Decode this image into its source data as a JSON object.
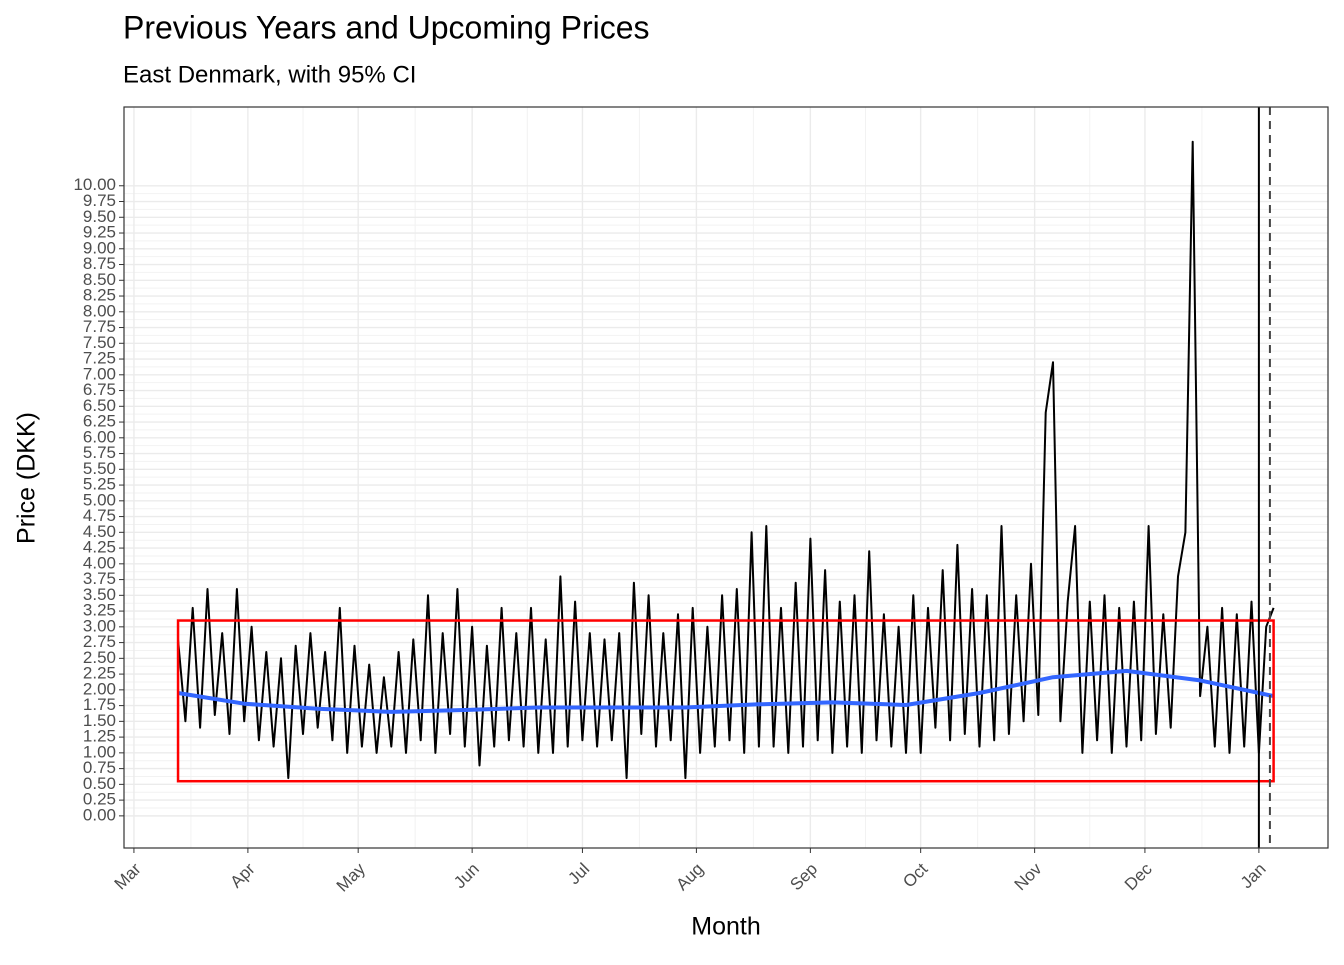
{
  "chart_data": {
    "type": "line",
    "title": "Previous Years and Upcoming Prices",
    "subtitle": "East Denmark, with 95% CI",
    "x_label": "Month",
    "y_label": "Price (DKK)",
    "xlim": [
      -2.7,
      324.8
    ],
    "ylim": [
      -0.51,
      11.25
    ],
    "xticks": [
      {
        "value": 0,
        "label": "Mar"
      },
      {
        "value": 31,
        "label": "Apr"
      },
      {
        "value": 61,
        "label": "May"
      },
      {
        "value": 92,
        "label": "Jun"
      },
      {
        "value": 122,
        "label": "Jul"
      },
      {
        "value": 153,
        "label": "Aug"
      },
      {
        "value": 184,
        "label": "Sep"
      },
      {
        "value": 214,
        "label": "Oct"
      },
      {
        "value": 245,
        "label": "Nov"
      },
      {
        "value": 275,
        "label": "Dec"
      },
      {
        "value": 306,
        "label": "Jan"
      }
    ],
    "yticks": [
      {
        "value": 0,
        "label": "0.00"
      },
      {
        "value": 0.25,
        "label": "0.25"
      },
      {
        "value": 0.5,
        "label": "0.50"
      },
      {
        "value": 0.75,
        "label": "0.75"
      },
      {
        "value": 1,
        "label": "1.00"
      },
      {
        "value": 1.25,
        "label": "1.25"
      },
      {
        "value": 1.5,
        "label": "1.50"
      },
      {
        "value": 1.75,
        "label": "1.75"
      },
      {
        "value": 2,
        "label": "2.00"
      },
      {
        "value": 2.25,
        "label": "2.25"
      },
      {
        "value": 2.5,
        "label": "2.50"
      },
      {
        "value": 2.75,
        "label": "2.75"
      },
      {
        "value": 3,
        "label": "3.00"
      },
      {
        "value": 3.25,
        "label": "3.25"
      },
      {
        "value": 3.5,
        "label": "3.50"
      },
      {
        "value": 3.75,
        "label": "3.75"
      },
      {
        "value": 4,
        "label": "4.00"
      },
      {
        "value": 4.25,
        "label": "4.25"
      },
      {
        "value": 4.5,
        "label": "4.50"
      },
      {
        "value": 4.75,
        "label": "4.75"
      },
      {
        "value": 5,
        "label": "5.00"
      },
      {
        "value": 5.25,
        "label": "5.25"
      },
      {
        "value": 5.5,
        "label": "5.50"
      },
      {
        "value": 5.75,
        "label": "5.75"
      },
      {
        "value": 6,
        "label": "6.00"
      },
      {
        "value": 6.25,
        "label": "6.25"
      },
      {
        "value": 6.5,
        "label": "6.50"
      },
      {
        "value": 6.75,
        "label": "6.75"
      },
      {
        "value": 7,
        "label": "7.00"
      },
      {
        "value": 7.25,
        "label": "7.25"
      },
      {
        "value": 7.5,
        "label": "7.50"
      },
      {
        "value": 7.75,
        "label": "7.75"
      },
      {
        "value": 8,
        "label": "8.00"
      },
      {
        "value": 8.25,
        "label": "8.25"
      },
      {
        "value": 8.5,
        "label": "8.50"
      },
      {
        "value": 8.75,
        "label": "8.75"
      },
      {
        "value": 9,
        "label": "9.00"
      },
      {
        "value": 9.25,
        "label": "9.25"
      },
      {
        "value": 9.5,
        "label": "9.50"
      },
      {
        "value": 9.75,
        "label": "9.75"
      },
      {
        "value": 10,
        "label": "10.00"
      }
    ],
    "grid": true,
    "series": [
      {
        "color": "#000000",
        "x": [
          12,
          14,
          16,
          18,
          20,
          22,
          24,
          26,
          28,
          30,
          32,
          34,
          36,
          38,
          40,
          42,
          44,
          46,
          48,
          50,
          52,
          54,
          56,
          58,
          60,
          62,
          64,
          66,
          68,
          70,
          72,
          74,
          76,
          78,
          80,
          82,
          84,
          86,
          88,
          90,
          92,
          94,
          96,
          98,
          100,
          102,
          104,
          106,
          108,
          110,
          112,
          114,
          116,
          118,
          120,
          122,
          124,
          126,
          128,
          130,
          132,
          134,
          136,
          138,
          140,
          142,
          144,
          146,
          148,
          150,
          152,
          154,
          156,
          158,
          160,
          162,
          164,
          166,
          168,
          170,
          172,
          174,
          176,
          178,
          180,
          182,
          184,
          186,
          188,
          190,
          192,
          194,
          196,
          198,
          200,
          202,
          204,
          206,
          208,
          210,
          212,
          214,
          216,
          218,
          220,
          222,
          224,
          226,
          228,
          230,
          232,
          234,
          236,
          238,
          240,
          242,
          244,
          246,
          248,
          250,
          252,
          254,
          256,
          258,
          260,
          262,
          264,
          266,
          268,
          270,
          272,
          274,
          276,
          278,
          280,
          282,
          284,
          286,
          288,
          290,
          292,
          294,
          296,
          298,
          300,
          302,
          304,
          306,
          308,
          310
        ],
        "values": [
          2.8,
          1.5,
          3.3,
          1.4,
          3.6,
          1.6,
          2.9,
          1.3,
          3.6,
          1.5,
          3.0,
          1.2,
          2.6,
          1.1,
          2.5,
          0.6,
          2.7,
          1.3,
          2.9,
          1.4,
          2.6,
          1.2,
          3.3,
          1.0,
          2.7,
          1.1,
          2.4,
          1.0,
          2.2,
          1.1,
          2.6,
          1.0,
          2.8,
          1.2,
          3.5,
          1.0,
          2.9,
          1.3,
          3.6,
          1.1,
          3.0,
          0.8,
          2.7,
          1.1,
          3.3,
          1.2,
          2.9,
          1.1,
          3.3,
          1.0,
          2.8,
          1.0,
          3.8,
          1.1,
          3.4,
          1.2,
          2.9,
          1.1,
          2.8,
          1.2,
          2.9,
          0.6,
          3.7,
          1.3,
          3.5,
          1.1,
          2.9,
          1.2,
          3.2,
          0.6,
          3.3,
          1.0,
          3.0,
          1.1,
          3.5,
          1.2,
          3.6,
          1.0,
          4.5,
          1.1,
          4.6,
          1.1,
          3.3,
          1.0,
          3.7,
          1.1,
          4.4,
          1.2,
          3.9,
          1.0,
          3.4,
          1.1,
          3.5,
          1.0,
          4.2,
          1.2,
          3.2,
          1.1,
          3.0,
          1.0,
          3.5,
          1.0,
          3.3,
          1.4,
          3.9,
          1.2,
          4.3,
          1.3,
          3.6,
          1.1,
          3.5,
          1.2,
          4.6,
          1.3,
          3.5,
          1.5,
          4.0,
          1.6,
          6.4,
          7.2,
          1.5,
          3.4,
          4.6,
          1.0,
          3.4,
          1.2,
          3.5,
          1.0,
          3.3,
          1.1,
          3.4,
          1.2,
          4.6,
          1.3,
          3.2,
          1.4,
          3.8,
          4.5,
          10.7,
          1.9,
          3.0,
          1.1,
          3.3,
          1.0,
          3.2,
          1.1,
          3.4,
          1.0,
          3.0,
          3.3
        ]
      },
      {
        "color": "#3366ff",
        "x": [
          12,
          30,
          50,
          70,
          90,
          110,
          130,
          150,
          170,
          190,
          210,
          230,
          250,
          270,
          290,
          310
        ],
        "values": [
          1.95,
          1.78,
          1.7,
          1.65,
          1.68,
          1.72,
          1.72,
          1.72,
          1.77,
          1.8,
          1.76,
          1.95,
          2.2,
          2.3,
          2.15,
          1.9
        ]
      }
    ],
    "highlight_box": {
      "x": [
        12,
        310
      ],
      "y": [
        0.55,
        3.1
      ],
      "color": "#ff0000"
    },
    "vlines": [
      {
        "x": 306,
        "color": "#000000",
        "dash": false
      },
      {
        "x": 309,
        "color": "#444444",
        "dash": true
      }
    ]
  }
}
